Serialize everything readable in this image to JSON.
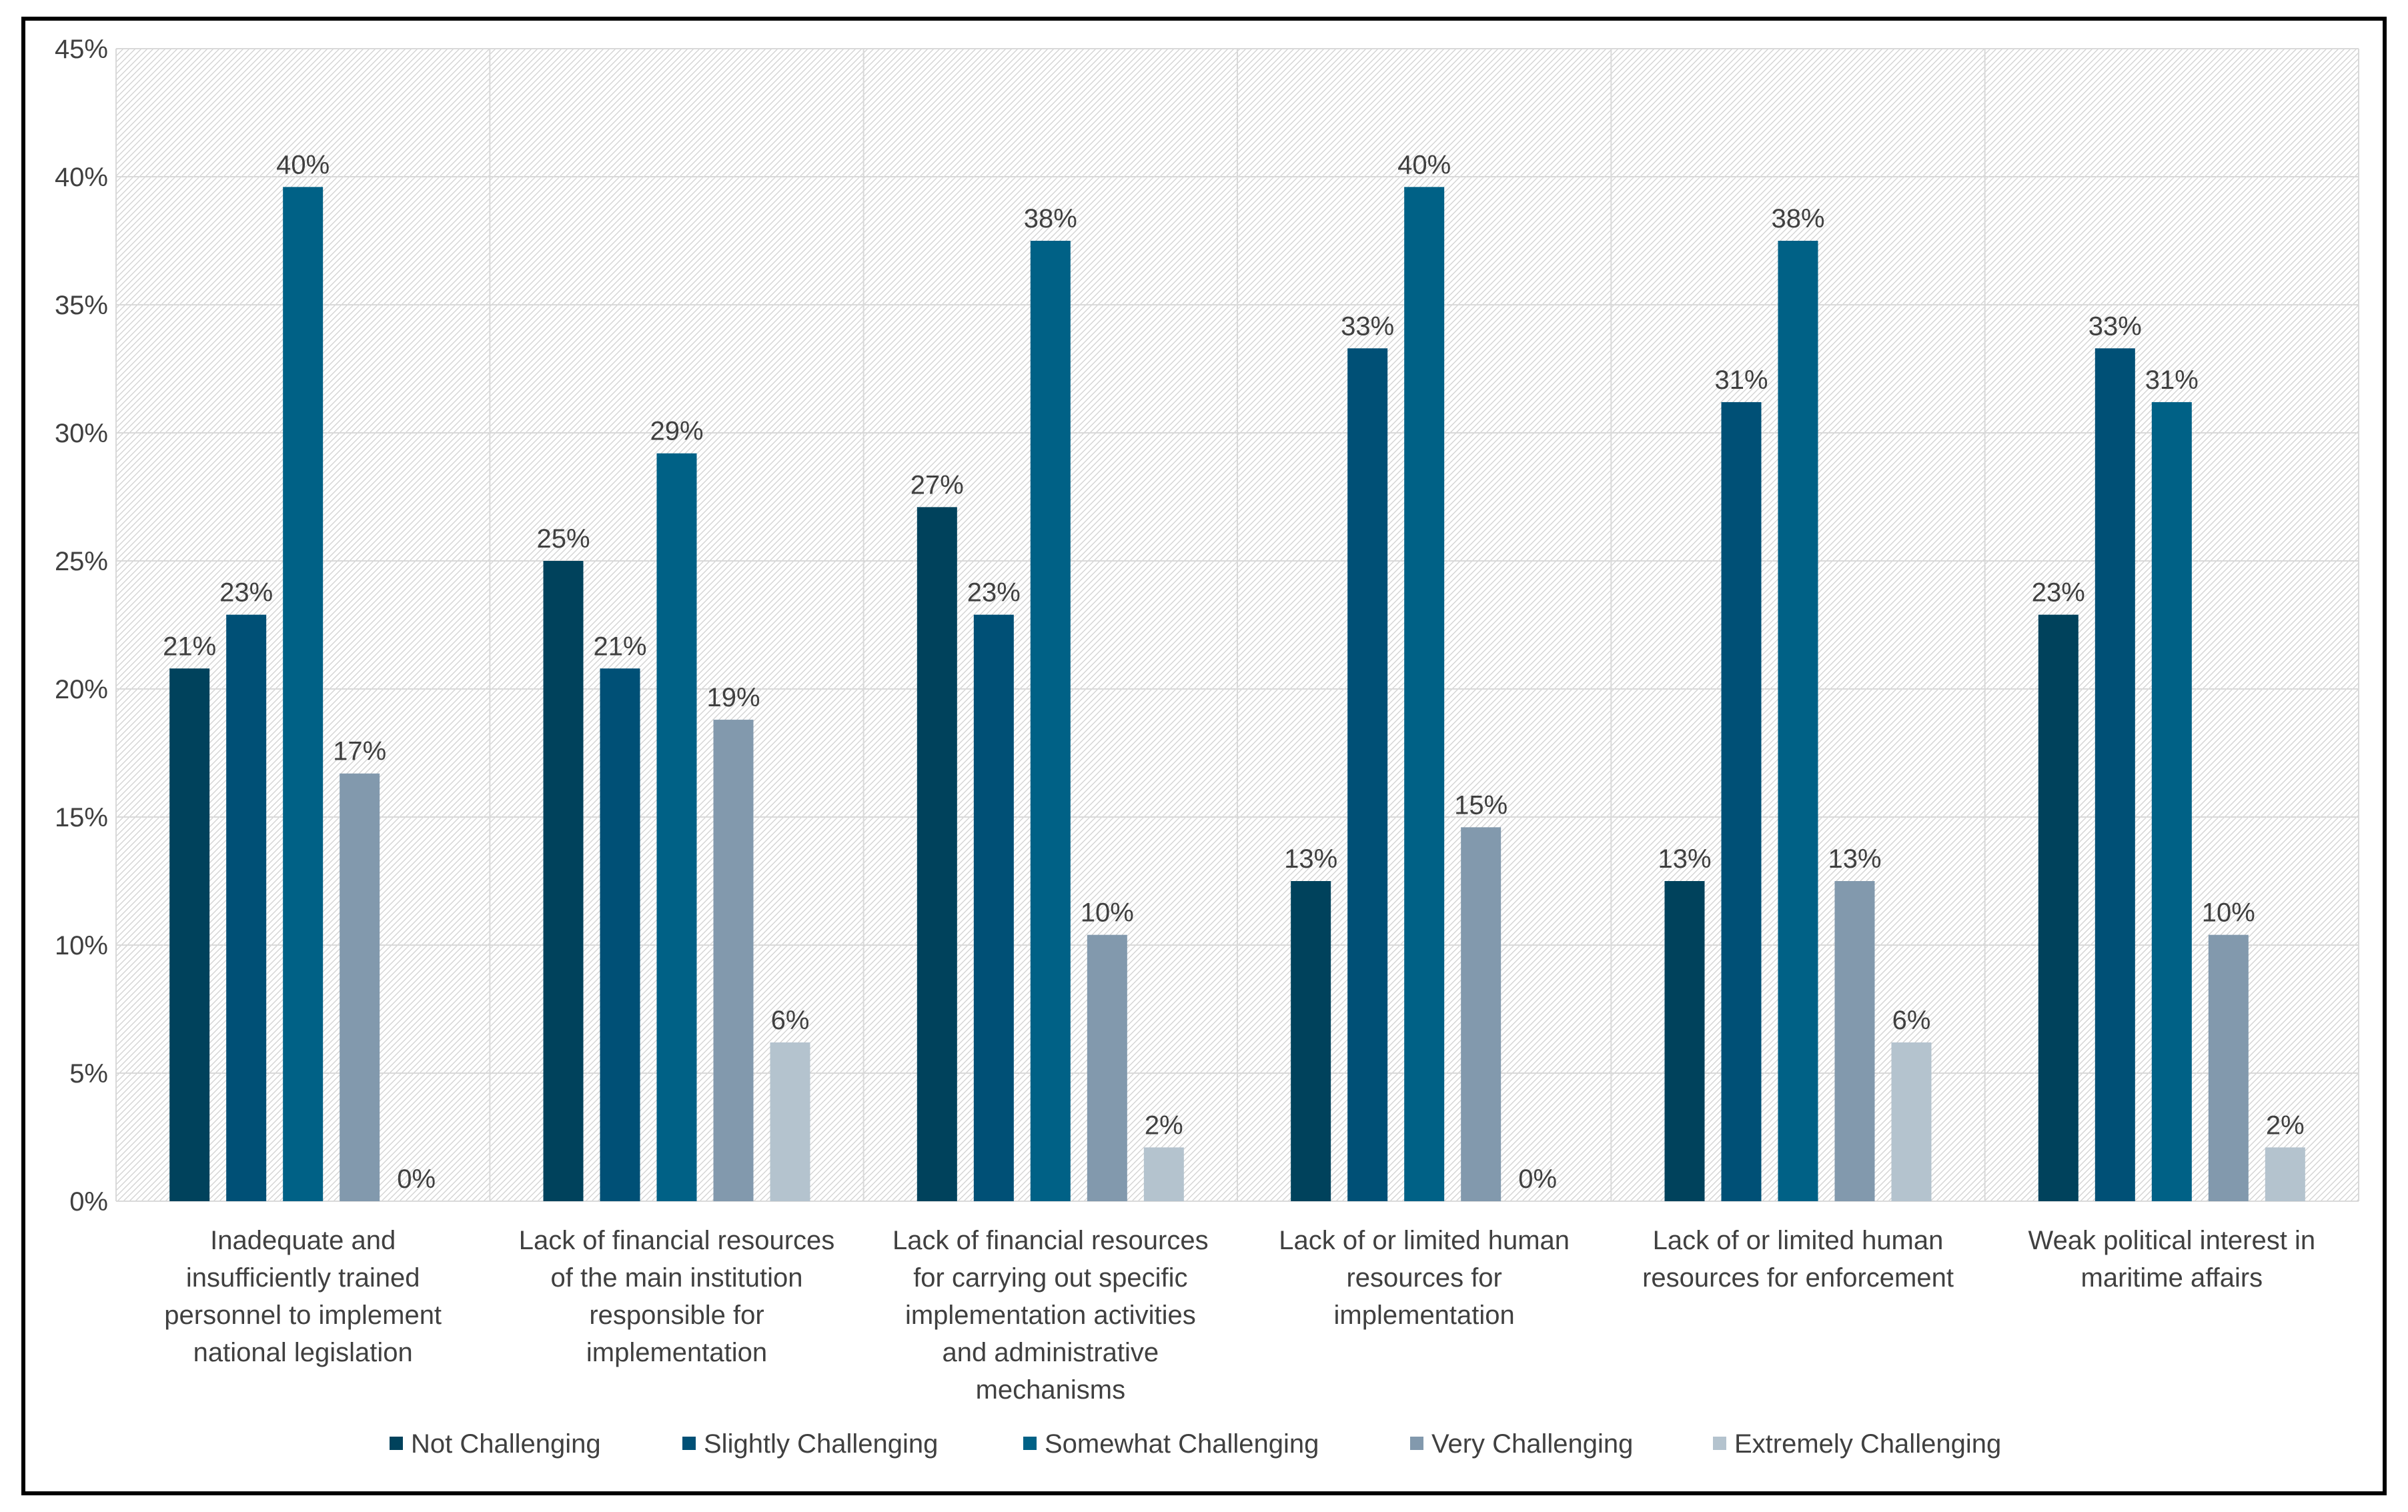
{
  "chart_data": {
    "type": "bar",
    "title": "",
    "xlabel": "",
    "ylabel": "",
    "ylim": [
      0,
      45
    ],
    "yticks": [
      "0%",
      "5%",
      "10%",
      "15%",
      "20%",
      "25%",
      "30%",
      "35%",
      "40%",
      "45%"
    ],
    "ytick_values": [
      0,
      5,
      10,
      15,
      20,
      25,
      30,
      35,
      40,
      45
    ],
    "grid": true,
    "legend_position": "bottom",
    "categories": [
      [
        "Inadequate and",
        "insufficiently trained",
        "personnel to implement",
        "national legislation"
      ],
      [
        "Lack of financial resources",
        "of the main institution",
        "responsible for",
        "implementation"
      ],
      [
        "Lack of financial resources",
        "for carrying out specific",
        "implementation activities",
        "and administrative",
        "mechanisms"
      ],
      [
        "Lack of or limited human",
        "resources  for",
        "implementation"
      ],
      [
        "Lack of or limited human",
        "resources for enforcement"
      ],
      [
        "Weak political interest in",
        "maritime affairs"
      ]
    ],
    "series": [
      {
        "name": "Not Challenging",
        "color": "#00425c",
        "values": [
          20.8,
          25.0,
          27.1,
          12.5,
          12.5,
          22.9
        ],
        "labels": [
          "21%",
          "25%",
          "27%",
          "13%",
          "13%",
          "23%"
        ]
      },
      {
        "name": "Slightly Challenging",
        "color": "#005076",
        "values": [
          22.9,
          20.8,
          22.9,
          33.3,
          31.2,
          33.3
        ],
        "labels": [
          "23%",
          "21%",
          "23%",
          "33%",
          "31%",
          "33%"
        ]
      },
      {
        "name": "Somewhat Challenging",
        "color": "#006186",
        "values": [
          39.6,
          29.2,
          37.5,
          39.6,
          37.5,
          31.2
        ],
        "labels": [
          "40%",
          "29%",
          "38%",
          "40%",
          "38%",
          "31%"
        ]
      },
      {
        "name": "Very Challenging",
        "color": "#8299ad",
        "values": [
          16.7,
          18.8,
          10.4,
          14.6,
          12.5,
          10.4
        ],
        "labels": [
          "17%",
          "19%",
          "10%",
          "15%",
          "13%",
          "10%"
        ]
      },
      {
        "name": "Extremely Challenging",
        "color": "#b4c3ce",
        "values": [
          0,
          6.2,
          2.1,
          0,
          6.2,
          2.1
        ],
        "labels": [
          "0%",
          "6%",
          "2%",
          "0%",
          "6%",
          "2%"
        ]
      }
    ]
  }
}
